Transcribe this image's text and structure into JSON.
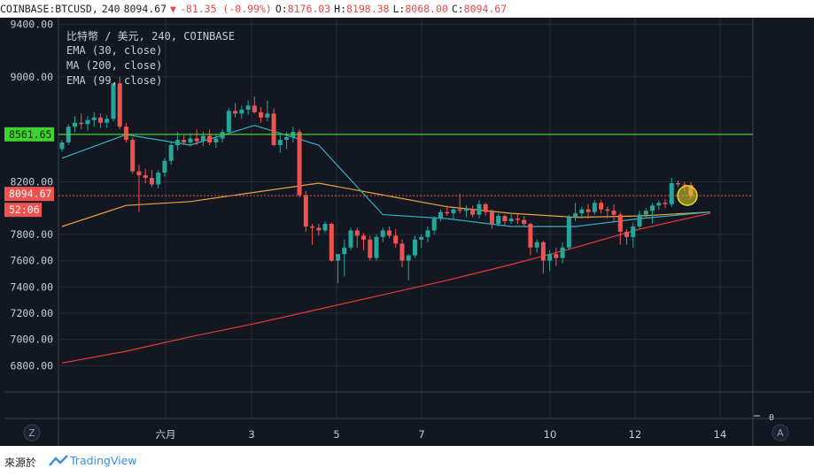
{
  "header": {
    "symbol": "COINBASE:BTCUSD,",
    "interval": "240",
    "last": "8094.67",
    "change_arrow": "▼",
    "change": "-81.35 (-0.99%)",
    "o_label": "O:",
    "o_value": "8176.03",
    "h_label": "H:",
    "h_value": "8198.38",
    "l_label": "L:",
    "l_value": "8068.00",
    "c_label": "C:",
    "c_value": "8094.67"
  },
  "legend": {
    "title": "比特幣 / 美元, 240, COINBASE",
    "ema30": "EMA (30, close)",
    "ma200": "MA (200, close)",
    "ema99": "EMA (99, close)"
  },
  "badges": {
    "level": "8561.65",
    "price": "8094.67",
    "countdown": "52:06"
  },
  "scale_buttons": {
    "left": "Z",
    "right": "A"
  },
  "footer": {
    "source": "來源於",
    "brand": "TradingView"
  },
  "colors": {
    "bg": "#131722",
    "up": "#26a69a",
    "down": "#ef5350",
    "ema30": "#2fb3c6",
    "ma200": "#e53935",
    "ema99": "#e8a33c",
    "level": "#3fd12f",
    "highlight": "#e6d72a"
  },
  "chart_data": {
    "type": "candlestick",
    "title": "比特幣 / 美元, 240, COINBASE",
    "ylim": [
      6600,
      9450
    ],
    "y_ticks": [
      "9400.00",
      "9000.00",
      "8200.00",
      "7800.00",
      "7600.00",
      "7400.00",
      "7200.00",
      "7000.00",
      "6800.00"
    ],
    "x_ticks": [
      "六月",
      "3",
      "5",
      "7",
      "10",
      "12",
      "14"
    ],
    "volume_axis_label": "0",
    "horizontal_level": 8561.65,
    "last_price": 8094.67,
    "candles": [
      [
        8450,
        8520,
        8430,
        8500
      ],
      [
        8500,
        8640,
        8480,
        8620
      ],
      [
        8620,
        8700,
        8580,
        8650
      ],
      [
        8650,
        8720,
        8600,
        8640
      ],
      [
        8640,
        8700,
        8590,
        8670
      ],
      [
        8670,
        8730,
        8620,
        8690
      ],
      [
        8690,
        8720,
        8610,
        8650
      ],
      [
        8650,
        8710,
        8610,
        8680
      ],
      [
        8680,
        8950,
        8660,
        8950
      ],
      [
        8950,
        9000,
        8600,
        8620
      ],
      [
        8620,
        8650,
        8500,
        8520
      ],
      [
        8520,
        8540,
        8260,
        8280
      ],
      [
        8280,
        8330,
        7970,
        8250
      ],
      [
        8250,
        8300,
        8190,
        8230
      ],
      [
        8230,
        8290,
        8160,
        8180
      ],
      [
        8180,
        8290,
        8150,
        8270
      ],
      [
        8270,
        8380,
        8240,
        8360
      ],
      [
        8360,
        8500,
        8330,
        8480
      ],
      [
        8480,
        8580,
        8440,
        8520
      ],
      [
        8520,
        8560,
        8480,
        8500
      ],
      [
        8500,
        8570,
        8470,
        8530
      ],
      [
        8530,
        8600,
        8480,
        8510
      ],
      [
        8510,
        8580,
        8470,
        8550
      ],
      [
        8550,
        8600,
        8480,
        8500
      ],
      [
        8500,
        8560,
        8460,
        8530
      ],
      [
        8530,
        8600,
        8500,
        8580
      ],
      [
        8580,
        8760,
        8560,
        8740
      ],
      [
        8740,
        8800,
        8690,
        8720
      ],
      [
        8720,
        8780,
        8680,
        8750
      ],
      [
        8750,
        8820,
        8710,
        8780
      ],
      [
        8780,
        8850,
        8720,
        8730
      ],
      [
        8730,
        8770,
        8650,
        8690
      ],
      [
        8690,
        8820,
        8660,
        8720
      ],
      [
        8720,
        8760,
        8470,
        8480
      ],
      [
        8480,
        8560,
        8420,
        8520
      ],
      [
        8520,
        8580,
        8450,
        8540
      ],
      [
        8540,
        8620,
        8500,
        8580
      ],
      [
        8580,
        8600,
        8080,
        8100
      ],
      [
        8100,
        8130,
        7820,
        7860
      ],
      [
        7860,
        7880,
        7720,
        7850
      ],
      [
        7850,
        7880,
        7790,
        7830
      ],
      [
        7830,
        7900,
        7810,
        7880
      ],
      [
        7880,
        7890,
        7590,
        7600
      ],
      [
        7600,
        7640,
        7430,
        7650
      ],
      [
        7650,
        7760,
        7480,
        7700
      ],
      [
        7700,
        7850,
        7680,
        7830
      ],
      [
        7830,
        7850,
        7700,
        7790
      ],
      [
        7790,
        7810,
        7680,
        7760
      ],
      [
        7760,
        7790,
        7600,
        7620
      ],
      [
        7620,
        7800,
        7600,
        7780
      ],
      [
        7780,
        7850,
        7740,
        7830
      ],
      [
        7830,
        7860,
        7770,
        7790
      ],
      [
        7790,
        7840,
        7700,
        7730
      ],
      [
        7730,
        7760,
        7550,
        7600
      ],
      [
        7600,
        7650,
        7450,
        7640
      ],
      [
        7640,
        7790,
        7620,
        7760
      ],
      [
        7760,
        7800,
        7700,
        7780
      ],
      [
        7780,
        7860,
        7740,
        7830
      ],
      [
        7830,
        7940,
        7800,
        7920
      ],
      [
        7920,
        7990,
        7900,
        7970
      ],
      [
        7970,
        8020,
        7940,
        7960
      ],
      [
        7960,
        8000,
        7910,
        7990
      ],
      [
        7990,
        8110,
        7960,
        7980
      ],
      [
        7980,
        8020,
        7930,
        7990
      ],
      [
        7990,
        8020,
        7930,
        7950
      ],
      [
        7950,
        8060,
        7920,
        8030
      ],
      [
        8030,
        8040,
        7940,
        7970
      ],
      [
        7970,
        7990,
        7840,
        7880
      ],
      [
        7880,
        7960,
        7860,
        7940
      ],
      [
        7940,
        7950,
        7870,
        7900
      ],
      [
        7900,
        7960,
        7880,
        7920
      ],
      [
        7920,
        7950,
        7880,
        7910
      ],
      [
        7910,
        7940,
        7860,
        7880
      ],
      [
        7880,
        7890,
        7640,
        7700
      ],
      [
        7700,
        7760,
        7660,
        7740
      ],
      [
        7740,
        7750,
        7500,
        7600
      ],
      [
        7600,
        7680,
        7520,
        7650
      ],
      [
        7650,
        7700,
        7560,
        7620
      ],
      [
        7620,
        7740,
        7580,
        7700
      ],
      [
        7700,
        7950,
        7680,
        7930
      ],
      [
        7930,
        8040,
        7900,
        7960
      ],
      [
        7960,
        8010,
        7920,
        7990
      ],
      [
        7990,
        8030,
        7920,
        7970
      ],
      [
        7970,
        8060,
        7950,
        8040
      ],
      [
        8040,
        8060,
        7960,
        7990
      ],
      [
        7990,
        8010,
        7920,
        7980
      ],
      [
        7980,
        8030,
        7900,
        7950
      ],
      [
        7950,
        7970,
        7720,
        7820
      ],
      [
        7820,
        7840,
        7720,
        7780
      ],
      [
        7780,
        7890,
        7700,
        7860
      ],
      [
        7860,
        7980,
        7840,
        7950
      ],
      [
        7950,
        8000,
        7920,
        7980
      ],
      [
        7980,
        8040,
        7880,
        8020
      ],
      [
        8020,
        8060,
        7990,
        8040
      ],
      [
        8040,
        8070,
        8000,
        8030
      ],
      [
        8030,
        8230,
        8010,
        8190
      ],
      [
        8190,
        8210,
        8160,
        8180
      ],
      [
        8180,
        8200,
        8130,
        8176
      ],
      [
        8176,
        8198,
        8068,
        8095
      ]
    ],
    "ema30": [
      [
        0,
        8380
      ],
      [
        10,
        8560
      ],
      [
        20,
        8480
      ],
      [
        30,
        8630
      ],
      [
        40,
        8480
      ],
      [
        50,
        7950
      ],
      [
        60,
        7920
      ],
      [
        70,
        7860
      ],
      [
        80,
        7860
      ],
      [
        90,
        7920
      ],
      [
        101,
        7970
      ]
    ],
    "ma200": [
      [
        0,
        6820
      ],
      [
        10,
        6910
      ],
      [
        20,
        7020
      ],
      [
        30,
        7120
      ],
      [
        40,
        7230
      ],
      [
        50,
        7340
      ],
      [
        60,
        7450
      ],
      [
        70,
        7570
      ],
      [
        80,
        7700
      ],
      [
        90,
        7840
      ],
      [
        101,
        7960
      ]
    ],
    "ema99": [
      [
        0,
        7860
      ],
      [
        10,
        8020
      ],
      [
        20,
        8050
      ],
      [
        30,
        8120
      ],
      [
        40,
        8190
      ],
      [
        50,
        8100
      ],
      [
        60,
        8010
      ],
      [
        70,
        7960
      ],
      [
        80,
        7930
      ],
      [
        90,
        7940
      ],
      [
        101,
        7970
      ]
    ]
  }
}
